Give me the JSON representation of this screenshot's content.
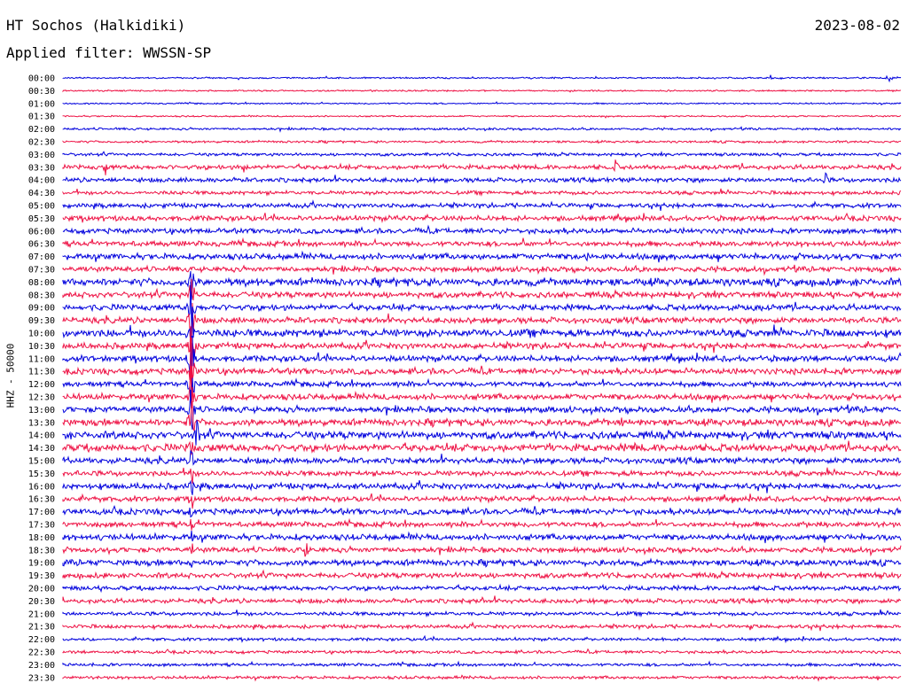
{
  "header": {
    "title": "HT Sochos (Halkidiki)",
    "date": "2023-08-02",
    "filter": "Applied filter: WWSSN-SP"
  },
  "chart_data": {
    "type": "line",
    "title": "HT Sochos (Halkidiki)",
    "ylabel": "HHZ - 50000",
    "xlabel": "",
    "row_labels": [
      "00:00",
      "00:30",
      "01:00",
      "01:30",
      "02:00",
      "02:30",
      "03:00",
      "03:30",
      "04:00",
      "04:30",
      "05:00",
      "05:30",
      "06:00",
      "06:30",
      "07:00",
      "07:30",
      "08:00",
      "08:30",
      "09:00",
      "09:30",
      "10:00",
      "10:30",
      "11:00",
      "11:30",
      "12:00",
      "12:30",
      "13:00",
      "13:30",
      "14:00",
      "14:30",
      "15:00",
      "15:30",
      "16:00",
      "16:30",
      "17:00",
      "17:30",
      "18:00",
      "18:30",
      "19:00",
      "19:30",
      "20:00",
      "20:30",
      "21:00",
      "21:30",
      "22:00",
      "22:30",
      "23:00",
      "23:30"
    ],
    "colors": [
      "#0000dd",
      "#ee1144"
    ],
    "noise_level": [
      1,
      1,
      1,
      1,
      1.5,
      1.5,
      2,
      3,
      3,
      2.5,
      3,
      3.5,
      3.5,
      3.5,
      4,
      3.5,
      5,
      4,
      4,
      4,
      5,
      4,
      4,
      4,
      3.5,
      4,
      4,
      4.5,
      5,
      5,
      4,
      3.5,
      4,
      3.5,
      4,
      3.5,
      4,
      3.5,
      4,
      3.5,
      3,
      3,
      2.5,
      2.5,
      2,
      2,
      2,
      2
    ],
    "events": [
      {
        "row": 0,
        "minute": 25.3,
        "amp": 4
      },
      {
        "row": 0,
        "minute": 29.6,
        "amp": 10
      },
      {
        "row": 7,
        "minute": 1.5,
        "amp": 9
      },
      {
        "row": 7,
        "minute": 6.5,
        "amp": 12
      },
      {
        "row": 7,
        "minute": 19.8,
        "amp": 9
      },
      {
        "row": 8,
        "minute": 27.3,
        "amp": 8
      },
      {
        "row": 13,
        "minute": 16.5,
        "amp": 7
      },
      {
        "row": 14,
        "minute": 18.8,
        "amp": 8
      },
      {
        "row": 16,
        "minute": 4.6,
        "amp": 25
      },
      {
        "row": 17,
        "minute": 4.6,
        "amp": 30
      },
      {
        "row": 18,
        "minute": 4.6,
        "amp": 35
      },
      {
        "row": 19,
        "minute": 4.6,
        "amp": 40
      },
      {
        "row": 20,
        "minute": 4.6,
        "amp": 45
      },
      {
        "row": 21,
        "minute": 4.6,
        "amp": 50
      },
      {
        "row": 22,
        "minute": 4.6,
        "amp": 40
      },
      {
        "row": 23,
        "minute": 4.6,
        "amp": 40
      },
      {
        "row": 24,
        "minute": 4.6,
        "amp": 35
      },
      {
        "row": 25,
        "minute": 4.6,
        "amp": 35
      },
      {
        "row": 26,
        "minute": 4.6,
        "amp": 35
      },
      {
        "row": 27,
        "minute": 4.6,
        "amp": 35
      },
      {
        "row": 28,
        "minute": 4.8,
        "amp": 25
      },
      {
        "row": 29,
        "minute": 4.6,
        "amp": 15
      },
      {
        "row": 30,
        "minute": 4.6,
        "amp": 12
      },
      {
        "row": 31,
        "minute": 4.6,
        "amp": 12
      },
      {
        "row": 32,
        "minute": 4.6,
        "amp": 12
      },
      {
        "row": 33,
        "minute": 4.6,
        "amp": 12
      },
      {
        "row": 34,
        "minute": 4.6,
        "amp": 12
      },
      {
        "row": 35,
        "minute": 4.6,
        "amp": 10
      },
      {
        "row": 36,
        "minute": 4.6,
        "amp": 8
      },
      {
        "row": 37,
        "minute": 4.6,
        "amp": 8
      },
      {
        "row": 38,
        "minute": 4.6,
        "amp": 8
      },
      {
        "row": 27,
        "minute": 20.0,
        "amp": 7
      },
      {
        "row": 29,
        "minute": 20.5,
        "amp": 9
      },
      {
        "row": 37,
        "minute": 8.7,
        "amp": 12
      },
      {
        "row": 36,
        "minute": 26.3,
        "amp": 6
      },
      {
        "row": 41,
        "minute": 15.0,
        "amp": 5
      }
    ]
  }
}
